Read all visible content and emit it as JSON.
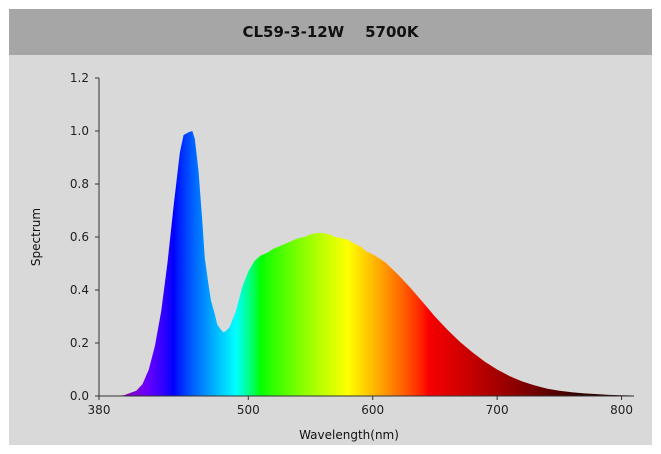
{
  "chart_data": {
    "type": "area",
    "title": "CL59-3-12W    5700K",
    "xlabel": "Wavelength(nm)",
    "ylabel": "Spectrum",
    "xlim": [
      380,
      810
    ],
    "ylim": [
      0,
      1.2
    ],
    "x_ticks": [
      "380",
      "500",
      "600",
      "700",
      "800"
    ],
    "y_ticks": [
      "0.0",
      "0.2",
      "0.4",
      "0.6",
      "0.8",
      "1.0",
      "1.2"
    ],
    "grid": false,
    "fill": "wavelength-colored spectrum",
    "x": [
      390,
      400,
      410,
      415,
      420,
      425,
      430,
      435,
      440,
      445,
      448,
      452,
      455,
      457,
      460,
      463,
      465,
      468,
      470,
      473,
      475,
      478,
      480,
      482,
      485,
      490,
      495,
      500,
      505,
      510,
      515,
      520,
      525,
      530,
      535,
      540,
      545,
      550,
      555,
      560,
      565,
      570,
      575,
      580,
      585,
      590,
      595,
      600,
      610,
      620,
      630,
      640,
      650,
      660,
      670,
      680,
      690,
      700,
      710,
      720,
      730,
      740,
      750,
      760,
      770,
      780,
      790,
      800,
      810
    ],
    "values": [
      0.0,
      0.003,
      0.02,
      0.045,
      0.1,
      0.19,
      0.32,
      0.5,
      0.72,
      0.92,
      0.985,
      0.995,
      1.0,
      0.97,
      0.85,
      0.66,
      0.52,
      0.42,
      0.36,
      0.31,
      0.27,
      0.25,
      0.24,
      0.245,
      0.26,
      0.32,
      0.41,
      0.47,
      0.51,
      0.53,
      0.54,
      0.555,
      0.565,
      0.575,
      0.585,
      0.595,
      0.6,
      0.61,
      0.615,
      0.615,
      0.61,
      0.6,
      0.595,
      0.59,
      0.575,
      0.565,
      0.545,
      0.535,
      0.505,
      0.46,
      0.41,
      0.355,
      0.3,
      0.25,
      0.205,
      0.165,
      0.13,
      0.1,
      0.075,
      0.055,
      0.04,
      0.028,
      0.02,
      0.014,
      0.01,
      0.007,
      0.004,
      0.003,
      0.002
    ]
  }
}
